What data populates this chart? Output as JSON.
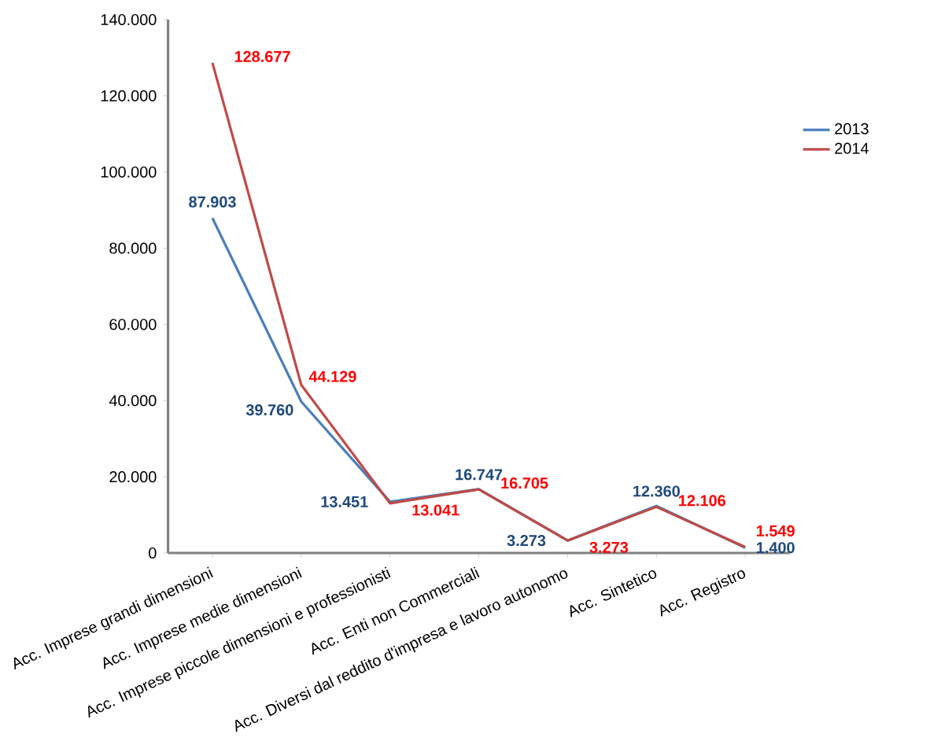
{
  "chart_data": {
    "type": "line",
    "categories": [
      "Acc. Imprese grandi dimensioni",
      "Acc. Imprese medie dimensioni",
      "Acc. Imprese piccole dimensioni e professionisti",
      "Acc. Enti non Commerciali",
      "Acc. Diversi dal reddito d'impresa e lavoro autonomo",
      "Acc. Sintetico",
      "Acc. Registro"
    ],
    "series": [
      {
        "name": "2013",
        "color": "#4a7ebb",
        "values": [
          87903,
          39760,
          13451,
          16747,
          3273,
          12360,
          1400
        ],
        "value_labels": [
          "87.903",
          "39.760",
          "13.451",
          "16.747",
          "3.273",
          "12.360",
          "1.400"
        ]
      },
      {
        "name": "2014",
        "color": "#be4b48",
        "values": [
          128677,
          44129,
          13041,
          16705,
          3273,
          12106,
          1549
        ],
        "value_labels": [
          "128.677",
          "44.129",
          "13.041",
          "16.705",
          "3.273",
          "12.106",
          "1.549"
        ]
      }
    ],
    "ylim": [
      0,
      140000
    ],
    "yticks": [
      0,
      {
        "value": 20000,
        "label": "20.000"
      },
      {
        "value": 40000,
        "label": "40.000"
      },
      {
        "value": 60000,
        "label": "60.000"
      },
      {
        "value": 80000,
        "label": "80.000"
      },
      {
        "value": 100000,
        "label": "100.000"
      },
      {
        "value": 120000,
        "label": "120.000"
      },
      {
        "value": 140000,
        "label": "140.000"
      }
    ],
    "legend": "right",
    "grid": false,
    "marker": "none",
    "line_style": "solid"
  }
}
